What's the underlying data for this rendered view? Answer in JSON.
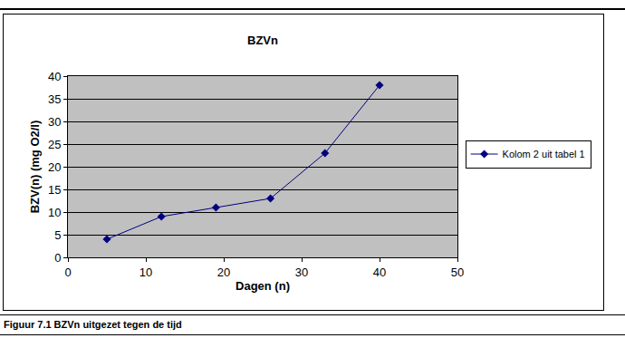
{
  "chart_data": {
    "type": "line",
    "title": "BZVn",
    "x_label": "Dagen (n)",
    "y_label": "BZV(n) (mg O2/l)",
    "x": [
      5,
      12,
      19,
      26,
      33,
      40
    ],
    "series": [
      {
        "name": "Kolom 2 uit tabel 1",
        "color": "#000080",
        "values": [
          4,
          9,
          11,
          13,
          23,
          38
        ],
        "marker": "diamond"
      }
    ],
    "xlim": [
      0,
      50
    ],
    "xticks": [
      0,
      10,
      20,
      30,
      40,
      50
    ],
    "ylim": [
      0,
      40
    ],
    "yticks": [
      0,
      5,
      10,
      15,
      20,
      25,
      30,
      35,
      40
    ],
    "grid": true,
    "legend": "right",
    "caption": "Figuur 7.1 BZVn uitgezet tegen de tijd"
  }
}
